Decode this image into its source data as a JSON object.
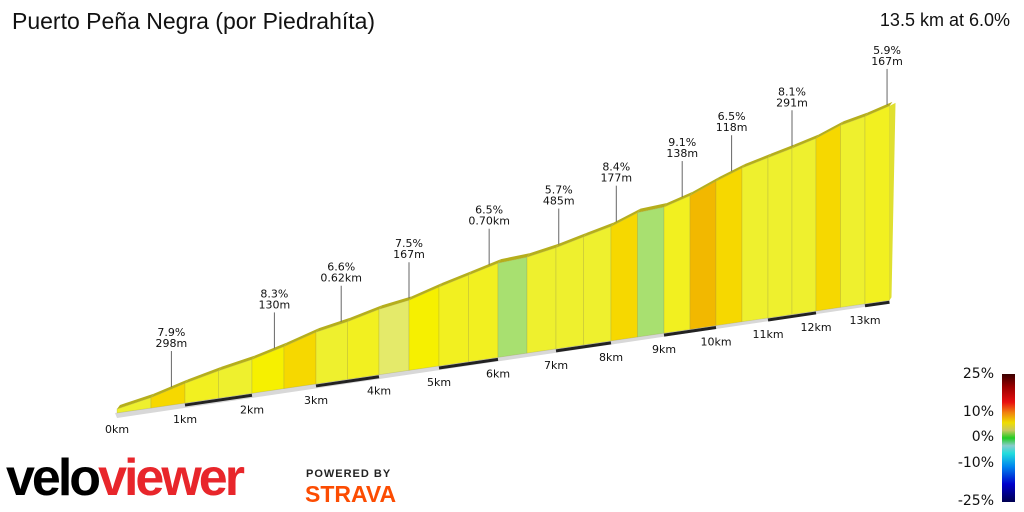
{
  "header": {
    "title": "Puerto Peña Negra (por Piedrahíta)",
    "summary": "13.5 km at 6.0%"
  },
  "chart_data": {
    "type": "area",
    "title": "Puerto Peña Negra (por Piedrahíta)",
    "total_distance_km": 13.5,
    "average_gradient_pct": 6.0,
    "segment_length_km": 0.5,
    "segment_gradients_pct": [
      5.5,
      7.9,
      6.5,
      5.5,
      7,
      8.3,
      5,
      6.6,
      4,
      7.5,
      6.5,
      6.5,
      1.5,
      4.5,
      5.7,
      5.5,
      8.4,
      1.5,
      6.5,
      9.1,
      8,
      5.5,
      5,
      5.5,
      8.1,
      4.5,
      5.9
    ],
    "x_tick_labels": [
      "0km",
      "1km",
      "2km",
      "3km",
      "4km",
      "5km",
      "6km",
      "7km",
      "8km",
      "9km",
      "10km",
      "11km",
      "12km",
      "13km"
    ],
    "annotations": [
      {
        "km": 0.8,
        "gradient": "7.9%",
        "length": "298m"
      },
      {
        "km": 2.35,
        "gradient": "8.3%",
        "length": "130m"
      },
      {
        "km": 3.4,
        "gradient": "6.6%",
        "length": "0.62km"
      },
      {
        "km": 4.5,
        "gradient": "7.5%",
        "length": "167m"
      },
      {
        "km": 5.85,
        "gradient": "6.5%",
        "length": "0.70km"
      },
      {
        "km": 7.05,
        "gradient": "5.7%",
        "length": "485m"
      },
      {
        "km": 8.1,
        "gradient": "8.4%",
        "length": "177m"
      },
      {
        "km": 9.35,
        "gradient": "9.1%",
        "length": "138m"
      },
      {
        "km": 10.3,
        "gradient": "6.5%",
        "length": "118m"
      },
      {
        "km": 11.5,
        "gradient": "8.1%",
        "length": "291m"
      },
      {
        "km": 13.45,
        "gradient": "5.9%",
        "length": "167m"
      }
    ],
    "color_scale": {
      "labels": [
        "25%",
        "10%",
        "0%",
        "-10%",
        "-25%"
      ],
      "range": [
        -25,
        25
      ]
    }
  },
  "branding": {
    "logo_velo": "velo",
    "logo_viewer": "viewer",
    "powered_by": "POWERED BY",
    "strava": "STRAVA"
  }
}
